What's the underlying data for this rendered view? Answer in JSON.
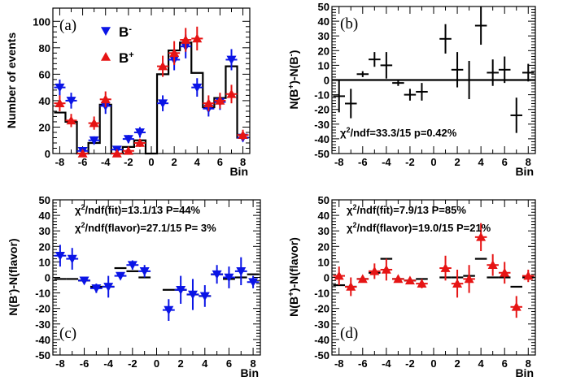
{
  "colors": {
    "bminus": "#0a14e6",
    "bplus": "#e61414",
    "axis": "#000000"
  },
  "chart_data": [
    {
      "id": "a",
      "type": "scatter",
      "panel_label": "(a)",
      "xlabel": "Bin",
      "ylabel": "Number of events",
      "xlim": [
        -8.6,
        8.6
      ],
      "ylim": [
        0,
        110
      ],
      "xticks": [
        -8,
        -6,
        -4,
        -2,
        0,
        2,
        4,
        6,
        8
      ],
      "yticks": [
        0,
        20,
        40,
        60,
        80,
        100
      ],
      "legend": [
        {
          "name": "B",
          "sup": "-",
          "series": "bminus"
        },
        {
          "name": "B",
          "sup": "+",
          "series": "bplus"
        }
      ],
      "fit_histogram": [
        31,
        24,
        0,
        8,
        37,
        0,
        5,
        10,
        0,
        60,
        78,
        84,
        61,
        35,
        42,
        66,
        12
      ],
      "series": [
        {
          "key": "bminus",
          "marker": "down",
          "x": [
            -8,
            -7,
            -6,
            -5,
            -4,
            -3,
            -2,
            -1,
            1,
            2,
            3,
            4,
            5,
            6,
            7,
            8
          ],
          "y": [
            50,
            40,
            2,
            10,
            36,
            3,
            11,
            16,
            38,
            71,
            81,
            50,
            34,
            39,
            71,
            12
          ],
          "err": [
            6,
            6,
            2,
            3,
            6,
            2,
            3,
            4,
            6,
            8,
            9,
            7,
            6,
            6,
            8,
            3
          ]
        },
        {
          "key": "bplus",
          "marker": "up",
          "x": [
            -8,
            -7,
            -6,
            -5,
            -4,
            -3,
            -2,
            -1,
            1,
            2,
            3,
            4,
            5,
            6,
            7,
            8
          ],
          "y": [
            38,
            25,
            0,
            23,
            41,
            0,
            2,
            8,
            66,
            76,
            86,
            87,
            38,
            40,
            45,
            14
          ],
          "err": [
            6,
            5,
            1,
            5,
            6,
            1,
            2,
            3,
            8,
            9,
            9,
            9,
            6,
            6,
            7,
            4
          ]
        }
      ]
    },
    {
      "id": "b",
      "type": "scatter",
      "panel_label": "(b)",
      "xlabel": "Bin",
      "ylabel": "N(B+)-N(B-)",
      "ylabel_parts": [
        "N(B",
        "+",
        ")-N(B",
        "-",
        ")"
      ],
      "xlim": [
        -8.6,
        8.6
      ],
      "ylim": [
        -50,
        50
      ],
      "xticks": [
        -8,
        -6,
        -4,
        -2,
        0,
        2,
        4,
        6,
        8
      ],
      "yticks": [
        -50,
        -40,
        -30,
        -20,
        -10,
        0,
        10,
        20,
        30,
        40,
        50
      ],
      "zero_line": true,
      "annotation": {
        "chi_label": "χ",
        "chi_sup": "2",
        "rest": "/ndf=33.3/15  p=0.42%"
      },
      "series": [
        {
          "key": "diff",
          "marker": "none",
          "x": [
            -8,
            -7,
            -6,
            -5,
            -4,
            -3,
            -2,
            -1,
            1,
            2,
            3,
            4,
            5,
            6,
            7,
            8
          ],
          "y": [
            -11,
            -16,
            4,
            14,
            10,
            -2,
            -10,
            -8,
            28,
            7,
            0,
            37,
            5,
            7,
            -24,
            5
          ],
          "err": [
            11,
            10,
            2,
            5,
            9,
            2,
            4,
            6,
            10,
            12,
            13,
            13,
            9,
            9,
            12,
            6
          ]
        }
      ]
    },
    {
      "id": "c",
      "type": "scatter",
      "panel_label": "(c)",
      "xlabel": "Bin",
      "ylabel": "N(B-)-N(flavor)",
      "ylabel_parts": [
        "N(B",
        "-",
        ")-N(flavor)"
      ],
      "xlim": [
        -8.6,
        8.6
      ],
      "ylim": [
        -50,
        50
      ],
      "xticks": [
        -8,
        -6,
        -4,
        -2,
        0,
        2,
        4,
        6,
        8
      ],
      "yticks": [
        -50,
        -40,
        -30,
        -20,
        -10,
        0,
        10,
        20,
        30,
        40,
        50
      ],
      "annotations": [
        {
          "chi_label": "χ",
          "chi_sup": "2",
          "rest": "/ndf(fit)=13.1/13  P=44%"
        },
        {
          "chi_label": "χ",
          "chi_sup": "2",
          "rest": "/ndf(flavor)=27.1/15  P= 3%"
        }
      ],
      "fit_steps": [
        -1,
        -1,
        -2,
        -6,
        -6,
        6,
        4,
        0,
        -8,
        -8,
        -11,
        -12,
        2,
        -1,
        0,
        2
      ],
      "series": [
        {
          "key": "bminus",
          "marker": "down",
          "x": [
            -8,
            -7,
            -6,
            -5,
            -4,
            -3,
            -2,
            -1,
            1,
            2,
            3,
            4,
            5,
            6,
            7,
            8
          ],
          "y": [
            14,
            12,
            -2,
            -7,
            -6,
            1,
            8,
            4,
            -21,
            -8,
            -11,
            -12,
            2,
            0,
            4,
            -3
          ],
          "err": [
            7,
            7,
            2,
            3,
            7,
            2,
            3,
            4,
            7,
            9,
            10,
            7,
            6,
            7,
            9,
            4
          ]
        }
      ]
    },
    {
      "id": "d",
      "type": "scatter",
      "panel_label": "(d)",
      "xlabel": "Bin",
      "ylabel": "N(B+)-N(flavor)",
      "ylabel_parts": [
        "N(B",
        "+",
        ")-N(flavor)"
      ],
      "xlim": [
        -8.6,
        8.6
      ],
      "ylim": [
        -50,
        50
      ],
      "xticks": [
        -8,
        -6,
        -4,
        -2,
        0,
        2,
        4,
        6,
        8
      ],
      "yticks": [
        -50,
        -40,
        -30,
        -20,
        -10,
        0,
        10,
        20,
        30,
        40,
        50
      ],
      "annotations": [
        {
          "chi_label": "χ",
          "chi_sup": "2",
          "rest": "/ndf(fit)=7.9/13  P=85%"
        },
        {
          "chi_label": "χ",
          "chi_sup": "2",
          "rest": "/ndf(flavor)=19.0/15  P=21%"
        }
      ],
      "fit_steps": [
        -5,
        -6,
        -1,
        3,
        12,
        -1,
        -2,
        -1,
        0,
        0,
        1,
        12,
        0,
        0,
        -6,
        0
      ],
      "series": [
        {
          "key": "bplus",
          "marker": "up",
          "x": [
            -8,
            -7,
            -6,
            -5,
            -4,
            -3,
            -2,
            -1,
            1,
            2,
            3,
            4,
            5,
            6,
            7,
            8
          ],
          "y": [
            1,
            -6,
            -1,
            4,
            5,
            -1,
            -2,
            -4,
            6,
            -4,
            -1,
            26,
            8,
            3,
            -19,
            1
          ],
          "err": [
            6,
            6,
            2,
            5,
            7,
            2,
            2,
            3,
            8,
            9,
            9,
            9,
            7,
            7,
            7,
            4
          ]
        }
      ]
    }
  ]
}
